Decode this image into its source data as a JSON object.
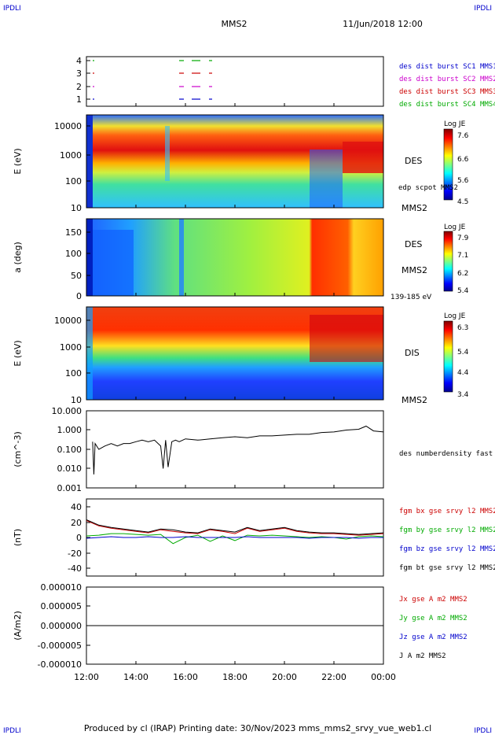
{
  "header": {
    "corner_left": "IPDLI",
    "corner_right": "IPDLI",
    "title": "MMS2",
    "datetime": "11/Jun/2018 12:00"
  },
  "footer": {
    "text": "Produced by cl (IRAP)   Printing date: 30/Nov/2023   mms_mms2_srvy_vue_web1.cl",
    "corner_left": "IPDLI",
    "corner_right": "IPDLI"
  },
  "x_axis": {
    "ticks": [
      "12:00",
      "14:00",
      "16:00",
      "18:00",
      "20:00",
      "22:00",
      "00:00"
    ]
  },
  "colors": {
    "blue": "#0000cc",
    "magenta": "#cc00cc",
    "red": "#cc0000",
    "green": "#00aa00",
    "black": "#000000"
  },
  "chart_data": [
    {
      "type": "line",
      "panel": "burst",
      "y_ticks": [
        "4",
        "3",
        "2",
        "1"
      ],
      "legend": [
        {
          "label": "des dist burst SC1 MMS1",
          "color": "#0000cc"
        },
        {
          "label": "des dist burst SC2 MMS2",
          "color": "#cc00cc"
        },
        {
          "label": "des dist burst SC3 MMS3",
          "color": "#cc0000"
        },
        {
          "label": "des dist burst SC4 MMS4",
          "color": "#00aa00"
        }
      ]
    },
    {
      "type": "heatmap",
      "panel": "des-energy",
      "ylabel": "E (eV)",
      "y_ticks": [
        "10000",
        "1000",
        "100",
        "10"
      ],
      "ylim": [
        10,
        30000
      ],
      "scale": "log",
      "side_label": "DES",
      "side_label2": "MMS2",
      "overlay_label": "edp scpot MMS2",
      "colorbar": {
        "title": "Log JE",
        "ticks": [
          "7.6",
          "6.6",
          "5.6",
          "4.5"
        ],
        "range": [
          4.5,
          7.8
        ]
      }
    },
    {
      "type": "heatmap",
      "panel": "des-pitch",
      "ylabel": "a (deg)",
      "y_ticks": [
        "150",
        "100",
        "50",
        "0"
      ],
      "ylim": [
        0,
        180
      ],
      "side_label": "DES",
      "side_label2": "MMS2",
      "bottom_label": "139-185 eV",
      "colorbar": {
        "title": "Log JE",
        "ticks": [
          "7.9",
          "7.1",
          "6.2",
          "5.4"
        ],
        "range": [
          5.4,
          8.1
        ]
      }
    },
    {
      "type": "heatmap",
      "panel": "dis-energy",
      "ylabel": "E (eV)",
      "y_ticks": [
        "10000",
        "1000",
        "100",
        "10"
      ],
      "ylim": [
        10,
        30000
      ],
      "scale": "log",
      "side_label": "DIS",
      "side_label2": "MMS2",
      "colorbar": {
        "title": "Log JE",
        "ticks": [
          "6.3",
          "5.4",
          "4.4",
          "3.4"
        ],
        "range": [
          3.4,
          6.5
        ]
      }
    },
    {
      "type": "line",
      "panel": "density",
      "ylabel": "(cm^-3)",
      "y_ticks": [
        "10.000",
        "1.000",
        "0.100",
        "0.010",
        "0.001"
      ],
      "ylim": [
        0.001,
        10
      ],
      "scale": "log",
      "series": [
        {
          "name": "des numberdensity fast M",
          "color": "#000000",
          "x": [
            0.25,
            0.3,
            0.35,
            0.5,
            0.75,
            1.0,
            1.25,
            1.5,
            1.75,
            2.0,
            2.25,
            2.5,
            2.75,
            3.0,
            3.1,
            3.2,
            3.3,
            3.45,
            3.6,
            3.75,
            4.0,
            4.5,
            5.0,
            5.5,
            6.0,
            6.5,
            7.0,
            7.5,
            8.0,
            8.5,
            9.0,
            9.5,
            10.0,
            10.5,
            11.0,
            11.3,
            11.6,
            12.0
          ],
          "y": [
            0.25,
            0.005,
            0.2,
            0.1,
            0.15,
            0.2,
            0.15,
            0.2,
            0.2,
            0.25,
            0.3,
            0.25,
            0.3,
            0.15,
            0.01,
            0.3,
            0.012,
            0.25,
            0.3,
            0.25,
            0.35,
            0.3,
            0.35,
            0.4,
            0.45,
            0.4,
            0.5,
            0.5,
            0.55,
            0.6,
            0.6,
            0.75,
            0.8,
            1.0,
            1.1,
            1.6,
            0.9,
            0.8
          ]
        }
      ]
    },
    {
      "type": "line",
      "panel": "fgm",
      "ylabel": "(nT)",
      "y_ticks": [
        "40",
        "20",
        "0",
        "-20",
        "-40"
      ],
      "ylim": [
        -50,
        50
      ],
      "series": [
        {
          "name": "fgm bx gse srvy l2 MMS2",
          "color": "#cc0000",
          "x": [
            0,
            0.5,
            1,
            1.5,
            2,
            2.5,
            3,
            3.5,
            4,
            4.5,
            5,
            5.5,
            6,
            6.5,
            7,
            7.5,
            8,
            8.5,
            9,
            9.5,
            10,
            10.5,
            11,
            11.5,
            12
          ],
          "y": [
            22,
            15,
            12,
            10,
            8,
            6,
            10,
            8,
            6,
            5,
            10,
            8,
            5,
            12,
            8,
            10,
            12,
            8,
            6,
            5,
            5,
            4,
            3,
            4,
            5
          ]
        },
        {
          "name": "fgm by gse srvy l2 MMS2",
          "color": "#00aa00",
          "x": [
            0,
            0.5,
            1,
            1.5,
            2,
            2.5,
            3,
            3.5,
            4,
            4.5,
            5,
            5.5,
            6,
            6.5,
            7,
            7.5,
            8,
            8.5,
            9,
            9.5,
            10,
            10.5,
            11,
            11.5,
            12
          ],
          "y": [
            2,
            3,
            5,
            5,
            4,
            3,
            4,
            -8,
            0,
            3,
            -5,
            2,
            -4,
            3,
            2,
            3,
            2,
            1,
            0,
            1,
            0,
            -2,
            1,
            2,
            1
          ]
        },
        {
          "name": "fgm bz gse srvy l2 MMS2",
          "color": "#0000cc",
          "x": [
            0,
            0.5,
            1,
            1.5,
            2,
            2.5,
            3,
            3.5,
            4,
            4.5,
            5,
            5.5,
            6,
            6.5,
            7,
            7.5,
            8,
            8.5,
            9,
            9.5,
            10,
            10.5,
            11,
            11.5,
            12
          ],
          "y": [
            -1,
            0,
            1,
            0,
            0,
            1,
            0,
            0,
            1,
            0,
            0,
            0,
            0,
            1,
            0,
            0,
            0,
            0,
            -1,
            0,
            0,
            0,
            -1,
            0,
            0
          ]
        },
        {
          "name": "fgm bt gse srvy l2 MMS2",
          "color": "#000000",
          "x": [
            0,
            0.5,
            1,
            1.5,
            2,
            2.5,
            3,
            3.5,
            4,
            4.5,
            5,
            5.5,
            6,
            6.5,
            7,
            7.5,
            8,
            8.5,
            9,
            9.5,
            10,
            10.5,
            11,
            11.5,
            12
          ],
          "y": [
            23,
            16,
            13,
            11,
            9,
            7,
            11,
            10,
            7,
            6,
            11,
            9,
            7,
            13,
            9,
            11,
            13,
            9,
            7,
            6,
            6,
            5,
            4,
            5,
            6
          ]
        }
      ]
    },
    {
      "type": "line",
      "panel": "current",
      "ylabel": "(A/m2)",
      "y_ticks": [
        "0.000010",
        "0.000005",
        "0.000000",
        "-0.000005",
        "-0.000010"
      ],
      "ylim": [
        -1e-05,
        1e-05
      ],
      "series": [
        {
          "name": "Jx gse A m2 MMS2",
          "color": "#cc0000"
        },
        {
          "name": "Jy gse A m2 MMS2",
          "color": "#00aa00"
        },
        {
          "name": "Jz gse A m2 MMS2",
          "color": "#0000cc"
        },
        {
          "name": "J A m2 MMS2",
          "color": "#000000",
          "x": [
            0,
            12
          ],
          "y": [
            0,
            0
          ]
        }
      ]
    }
  ]
}
